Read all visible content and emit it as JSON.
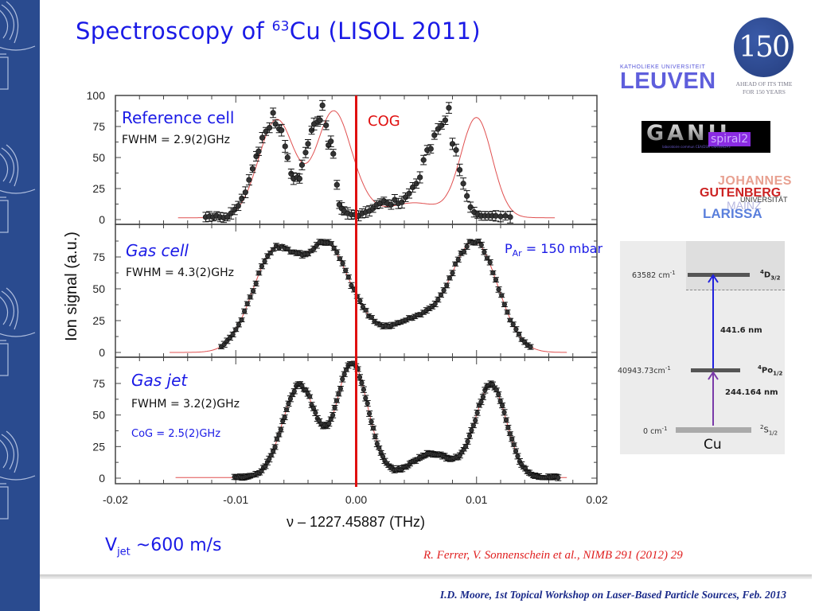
{
  "slide": {
    "title_prefix": "Spectroscopy of ",
    "title_isotope_mass": "63",
    "title_element": "Cu",
    "title_suffix": " (LISOL 2011)",
    "vjet_label": "V",
    "vjet_sub": "jet",
    "vjet_value": " ~600  m/s",
    "reference": "R. Ferrer, V. Sonnenschein et al., NIMB 291 (2012) 29",
    "footer": "I.D. Moore, 1st Topical Workshop on Laser-Based Particle Sources, Feb. 2013",
    "accent_color": "#1a1ae6",
    "sidebar_color": "#2a4b8f"
  },
  "logos": {
    "leuven_top": "KATHOLIEKE UNIVERSITEIT",
    "leuven_main": "LEUVEN",
    "anniversary_number": "150",
    "anniversary_line1": "AHEAD OF ITS TIME",
    "anniversary_line2": "FOR 150 YEARS",
    "ganil": "GANIL",
    "ganil_spiral": "spiral2",
    "ganil_sub": "laboratoire commun CEA/DSM  CNRS/IN2P3",
    "jgu_johannes": "JOHANNES",
    "jgu_gutenberg": "GUTENBERG",
    "jgu_universitaet": "UNIVERSITÄT",
    "jgu_mainz": "MAINZ",
    "larissa": "LARISSA"
  },
  "level_scheme": {
    "element": "Cu",
    "levels": [
      {
        "energy": "63582 cm",
        "exp": "-1",
        "term_mult": "4",
        "term_L": "D",
        "term_J": "3/2"
      },
      {
        "energy": "40943.73cm",
        "exp": "-1",
        "term_mult": "4",
        "term_L": "Po",
        "term_J": "1/2"
      },
      {
        "energy": "0 cm",
        "exp": "-1",
        "term_mult": "2",
        "term_L": "S",
        "term_J": "1/2"
      }
    ],
    "transitions": [
      {
        "wavelength": "441.6 nm",
        "color": "#2222dd"
      },
      {
        "wavelength": "244.164 nm",
        "color": "#7a3aa8"
      }
    ]
  },
  "chart_data": {
    "type": "scatter",
    "title": "",
    "xlabel": "ν – 1227.45887 (THz)",
    "ylabel": "Ion signal (a.u.)",
    "xlim": [
      -0.02,
      0.02
    ],
    "xticks": [
      "-0.02",
      "-0.01",
      "0.00",
      "0.01",
      "0.02"
    ],
    "xtick_values": [
      -0.02,
      -0.01,
      0.0,
      0.01,
      0.02
    ],
    "cog_line_x": 0.0,
    "cog_label": "COG",
    "cog_color": "#e01010",
    "fit_color": "#e05050",
    "panels": [
      {
        "name": "Reference cell",
        "fwhm": "FWHM = 2.9(2)GHz",
        "extra": "",
        "ylim": [
          0,
          100
        ],
        "yticks": [
          "0",
          "25",
          "50",
          "75",
          "100"
        ],
        "ytick_values": [
          0,
          25,
          50,
          75,
          100
        ],
        "fit_range": [
          -0.0148,
          0.0165
        ],
        "peaks": [
          {
            "x0": -0.0066,
            "amp": 79,
            "w": 0.0015
          },
          {
            "x0": -0.0019,
            "amp": 84,
            "w": 0.0014
          },
          {
            "x0": 0.0003,
            "amp": 8,
            "w": 0.0012
          },
          {
            "x0": 0.0048,
            "amp": 12,
            "w": 0.0022
          },
          {
            "x0": 0.01,
            "amp": 80,
            "w": 0.0013
          }
        ],
        "baseline": 1.5,
        "points": [
          [
            -0.0125,
            2
          ],
          [
            -0.0122,
            2.5
          ],
          [
            -0.0119,
            2
          ],
          [
            -0.0116,
            3
          ],
          [
            -0.0113,
            2
          ],
          [
            -0.011,
            1.5
          ],
          [
            -0.0107,
            2
          ],
          [
            -0.0104,
            5
          ],
          [
            -0.0101,
            8
          ],
          [
            -0.0098,
            11
          ],
          [
            -0.0095,
            17
          ],
          [
            -0.0092,
            22
          ],
          [
            -0.0089,
            32
          ],
          [
            -0.0086,
            41
          ],
          [
            -0.0083,
            51
          ],
          [
            -0.0081,
            55
          ],
          [
            -0.0078,
            66
          ],
          [
            -0.0075,
            71
          ],
          [
            -0.0072,
            74
          ],
          [
            -0.0069,
            86
          ],
          [
            -0.0067,
            77
          ],
          [
            -0.0064,
            73
          ],
          [
            -0.0062,
            72
          ],
          [
            -0.0059,
            59
          ],
          [
            -0.0057,
            50
          ],
          [
            -0.0054,
            37
          ],
          [
            -0.0052,
            33
          ],
          [
            -0.0049,
            34
          ],
          [
            -0.0047,
            33
          ],
          [
            -0.0045,
            44
          ],
          [
            -0.0042,
            54
          ],
          [
            -0.004,
            61
          ],
          [
            -0.0037,
            72
          ],
          [
            -0.0035,
            77
          ],
          [
            -0.0032,
            79
          ],
          [
            -0.003,
            80
          ],
          [
            -0.0028,
            92
          ],
          [
            -0.0025,
            76
          ],
          [
            -0.0023,
            60
          ],
          [
            -0.0021,
            63
          ],
          [
            -0.0019,
            53
          ],
          [
            -0.0016,
            28
          ],
          [
            -0.0014,
            12
          ],
          [
            -0.0012,
            9
          ],
          [
            -0.001,
            7
          ],
          [
            -0.0007,
            5
          ],
          [
            -0.0004,
            4
          ],
          [
            -0.0001,
            4
          ],
          [
            0.0002,
            3
          ],
          [
            0.0005,
            5
          ],
          [
            0.0008,
            6
          ],
          [
            0.0011,
            7
          ],
          [
            0.0014,
            9
          ],
          [
            0.0017,
            12
          ],
          [
            0.002,
            13
          ],
          [
            0.0023,
            15
          ],
          [
            0.0026,
            13
          ],
          [
            0.0029,
            12
          ],
          [
            0.0032,
            16
          ],
          [
            0.0035,
            13
          ],
          [
            0.0038,
            14
          ],
          [
            0.0041,
            18
          ],
          [
            0.0044,
            21
          ],
          [
            0.0047,
            26
          ],
          [
            0.005,
            29
          ],
          [
            0.0053,
            34
          ],
          [
            0.0056,
            48
          ],
          [
            0.0059,
            56
          ],
          [
            0.0062,
            57
          ],
          [
            0.0065,
            68
          ],
          [
            0.0068,
            73
          ],
          [
            0.0071,
            76
          ],
          [
            0.0074,
            80
          ],
          [
            0.0077,
            90
          ],
          [
            0.008,
            61
          ],
          [
            0.0083,
            56
          ],
          [
            0.0086,
            40
          ],
          [
            0.0089,
            29
          ],
          [
            0.0092,
            19
          ],
          [
            0.0095,
            10
          ],
          [
            0.0098,
            6
          ],
          [
            0.0101,
            4
          ],
          [
            0.0104,
            3
          ],
          [
            0.0107,
            3
          ],
          [
            0.011,
            3
          ],
          [
            0.0113,
            3
          ],
          [
            0.0116,
            3
          ],
          [
            0.012,
            2.5
          ],
          [
            0.0124,
            3
          ],
          [
            0.0128,
            2
          ]
        ]
      },
      {
        "name": "Gas cell",
        "fwhm": "FWHM = 4.3(2)GHz",
        "extra": "P_Ar = 150 mbar",
        "extra_main": "P",
        "extra_sub": "Ar",
        "extra_rest": " = 150 mbar",
        "ylim": [
          0,
          95
        ],
        "yticks": [
          "0",
          "25",
          "50",
          "75"
        ],
        "ytick_values": [
          0,
          25,
          50,
          75
        ],
        "fit_range": [
          -0.0155,
          0.0175
        ],
        "peaks": [
          {
            "x0": -0.0067,
            "amp": 80,
            "w": 0.0019
          },
          {
            "x0": -0.0024,
            "amp": 78,
            "w": 0.0017
          },
          {
            "x0": 0.0004,
            "amp": 14,
            "w": 0.0014
          },
          {
            "x0": 0.005,
            "amp": 26,
            "w": 0.0024
          },
          {
            "x0": 0.0099,
            "amp": 84,
            "w": 0.0019
          }
        ],
        "baseline": 0
      },
      {
        "name": "Gas jet",
        "fwhm": "FWHM = 3.2(2)GHz",
        "extra": "CoG = 2.5(2)GHz",
        "ylim": [
          0,
          95
        ],
        "yticks": [
          "0",
          "25",
          "50",
          "75"
        ],
        "ytick_values": [
          0,
          25,
          50,
          75
        ],
        "fit_range": [
          -0.015,
          0.0175
        ],
        "peaks": [
          {
            "x0": -0.0047,
            "amp": 73,
            "w": 0.0014
          },
          {
            "x0": -0.0004,
            "amp": 89,
            "w": 0.0012
          },
          {
            "x0": 0.0013,
            "amp": 10,
            "w": 0.001
          },
          {
            "x0": 0.0063,
            "amp": 19,
            "w": 0.0017
          },
          {
            "x0": 0.0112,
            "amp": 73,
            "w": 0.0013
          }
        ],
        "baseline": 0.5
      }
    ]
  }
}
